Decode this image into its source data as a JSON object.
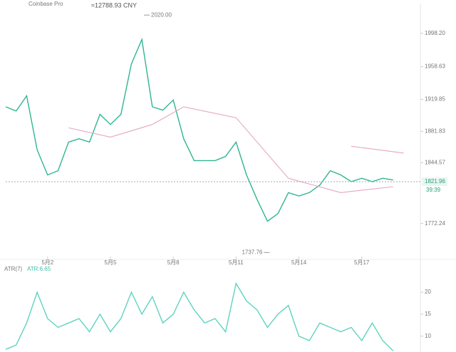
{
  "header": {
    "exchange": "Coinbase Pro",
    "converted_price": "≈12788.93 CNY"
  },
  "chart_data": [
    {
      "type": "line",
      "xlim": [
        0,
        19.8
      ],
      "ylim": [
        1733,
        2021
      ],
      "xticks": [
        {
          "value": 2,
          "label": "5月2"
        },
        {
          "value": 5,
          "label": "5月5"
        },
        {
          "value": 8,
          "label": "5月8"
        },
        {
          "value": 11,
          "label": "5月11"
        },
        {
          "value": 14,
          "label": "5月14"
        },
        {
          "value": 17,
          "label": "5月17"
        }
      ],
      "yticks": [
        {
          "value": 1998.2,
          "label": "1998.20"
        },
        1958.63,
        1919.85,
        1881.83,
        1844.57,
        1772.24
      ],
      "series": [
        {
          "color": "#2fb592",
          "x": [
            0,
            0.5,
            1,
            1.5,
            2,
            2.5,
            3,
            3.5,
            4,
            4.5,
            5,
            5.5,
            6,
            6.5,
            7,
            7.5,
            8,
            8.5,
            9,
            9.5,
            10,
            10.5,
            11,
            11.5,
            12,
            12.5,
            13,
            13.5,
            14,
            14.5,
            15,
            15.5,
            16,
            16.5,
            17,
            17.5,
            18,
            18.5
          ],
          "values": [
            1911,
            1906,
            1924,
            1860,
            1830,
            1835,
            1869,
            1873,
            1869,
            1902,
            1890,
            1902,
            1962,
            1991,
            1911,
            1907,
            1919,
            1873,
            1847,
            1847,
            1847,
            1852,
            1869,
            1830,
            1801,
            1775,
            1784,
            1809,
            1805,
            1809,
            1818,
            1835,
            1830,
            1822,
            1826,
            1822,
            1826,
            1824
          ]
        },
        {
          "color": "#e3a6c3",
          "x": [
            3,
            5,
            7,
            8.5,
            11,
            13.5,
            16,
            18.5
          ],
          "values": [
            1886,
            1875,
            1890,
            1911,
            1898,
            1826,
            1809,
            1816
          ]
        },
        {
          "color": "#e3a6c3",
          "x": [
            16.5,
            19
          ],
          "values": [
            1864,
            1856
          ]
        }
      ],
      "high": {
        "value": 2020,
        "label": "2020.00",
        "x": 6.6
      },
      "low": {
        "value": 1737.76,
        "label": "1737.76",
        "x": 12.6
      },
      "current_price": 1821.96,
      "countdown": "39:39"
    },
    {
      "type": "line",
      "title": "ATR(7)",
      "value_text": "ATR:6.65",
      "xlim": [
        0,
        19.8
      ],
      "ylim": [
        6.4,
        26.5
      ],
      "yticks": [
        20,
        15,
        10
      ],
      "series": [
        {
          "color": "#5fd3bf",
          "x": [
            0,
            0.5,
            1,
            1.5,
            2,
            2.5,
            3,
            3.5,
            4,
            4.5,
            5,
            5.5,
            6,
            6.5,
            7,
            7.5,
            8,
            8.5,
            9,
            9.5,
            10,
            10.5,
            11,
            11.5,
            12,
            12.5,
            13,
            13.5,
            14,
            14.5,
            15,
            15.5,
            16,
            16.5,
            17,
            17.5,
            18,
            18.5
          ],
          "values": [
            7,
            8,
            13,
            20,
            14,
            12,
            13,
            14,
            11,
            15,
            11,
            14,
            20,
            15,
            19,
            13,
            15,
            20,
            16,
            13,
            14,
            11,
            22,
            18,
            16,
            12,
            15,
            17,
            10,
            9,
            13,
            12,
            11,
            12,
            9,
            13,
            9,
            6.65
          ]
        }
      ]
    }
  ]
}
